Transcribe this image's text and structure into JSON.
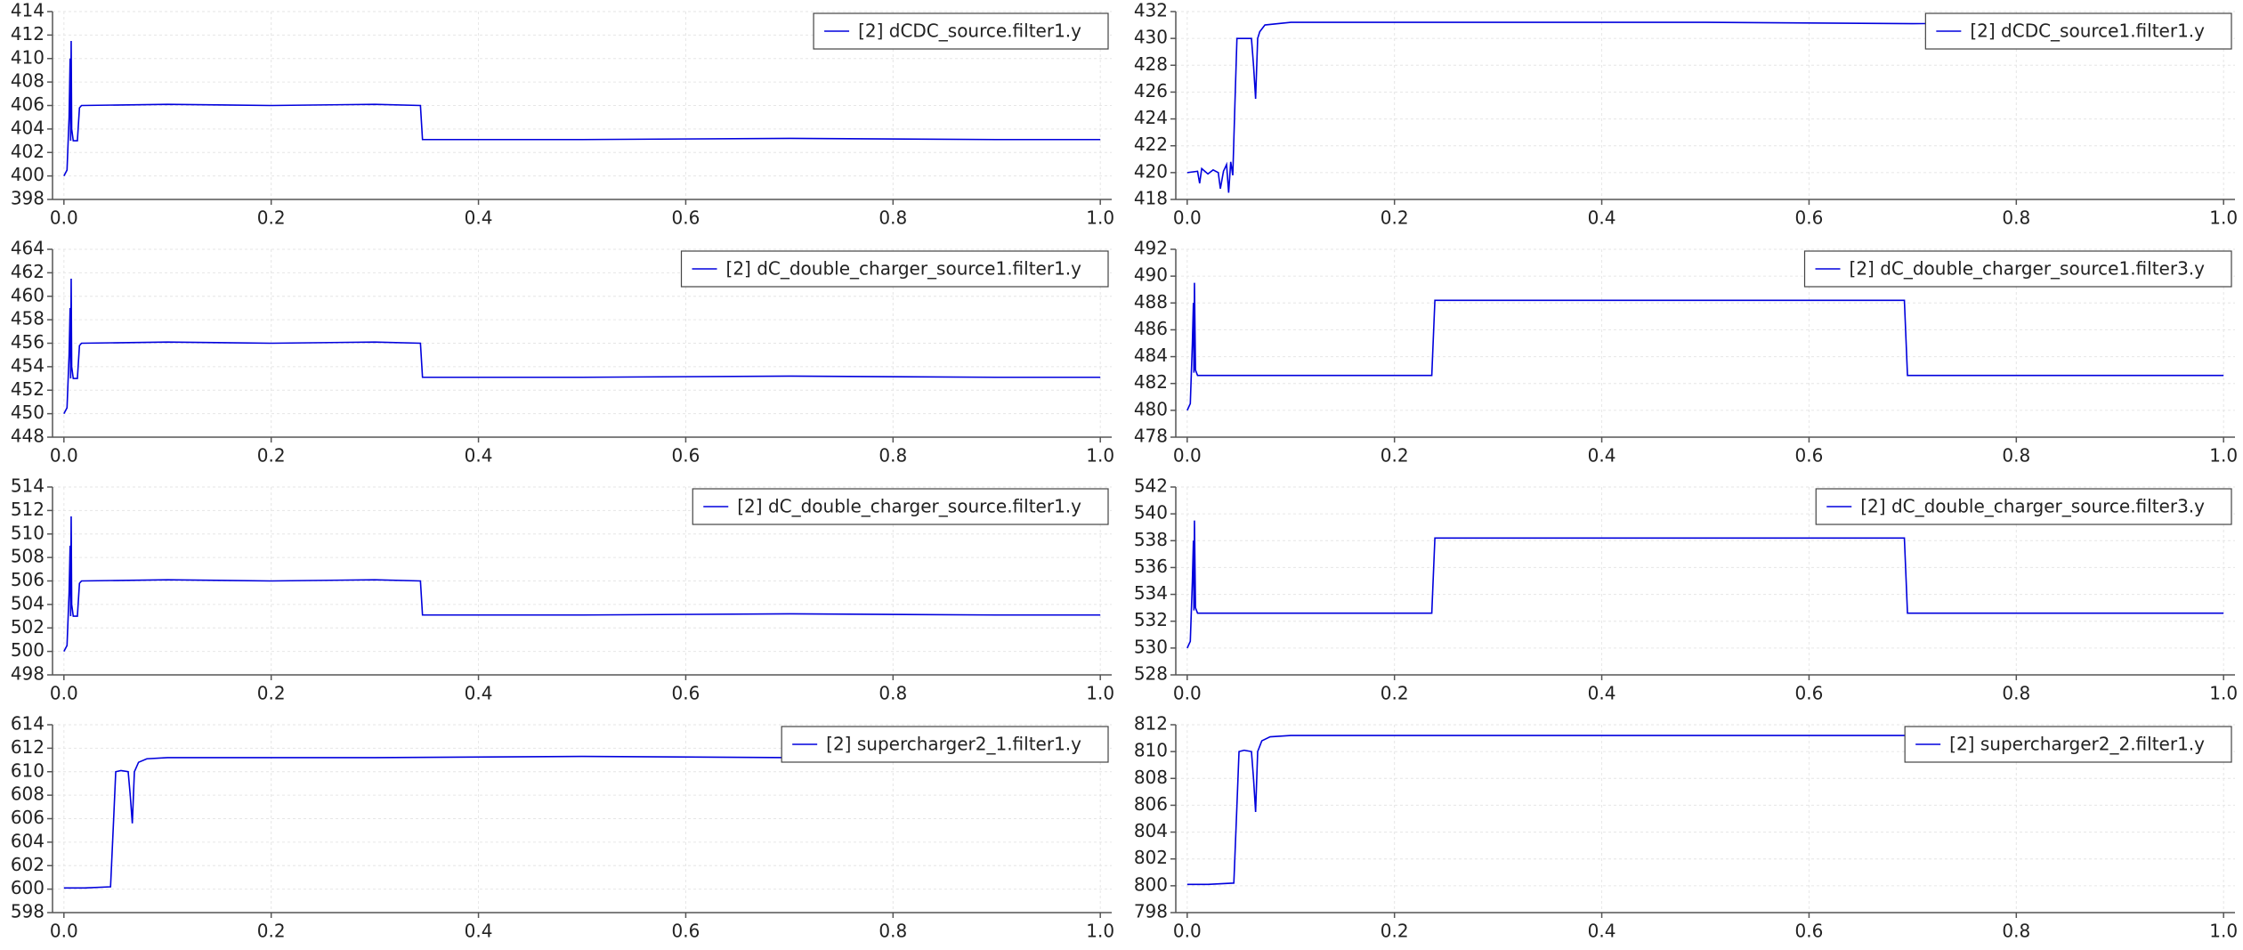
{
  "chart_data": [
    {
      "type": "line",
      "x": [
        0,
        0.003,
        0.005,
        0.006,
        0.0065,
        0.007,
        0.0075,
        0.009,
        0.013,
        0.015,
        0.017,
        0.1,
        0.2,
        0.3,
        0.344,
        0.346,
        0.5,
        0.7,
        0.9,
        1.0
      ],
      "series": [
        {
          "name": "[2] dCDC_source.filter1.y",
          "color": "#0000dd",
          "values": [
            400,
            400.5,
            405,
            410,
            403,
            411.5,
            404,
            403,
            403,
            405.8,
            406,
            406.1,
            406,
            406.1,
            406,
            403.1,
            403.1,
            403.2,
            403.1,
            403.1
          ]
        }
      ],
      "xlim": [
        -0.011,
        1.011
      ],
      "ylim": [
        398,
        414
      ],
      "xticks": [
        {
          "value": 0,
          "label": "0.0"
        },
        0.2,
        0.4,
        0.6,
        0.8,
        {
          "value": 1,
          "label": "1.0"
        }
      ],
      "yticks": [
        398,
        400,
        402,
        404,
        406,
        408,
        410,
        412,
        414
      ],
      "grid": true,
      "legend": "upper right"
    },
    {
      "type": "line",
      "x": [
        0,
        0.01,
        0.012,
        0.014,
        0.02,
        0.025,
        0.03,
        0.032,
        0.035,
        0.038,
        0.04,
        0.042,
        0.044,
        0.046,
        0.048,
        0.055,
        0.062,
        0.064,
        0.066,
        0.068,
        0.07,
        0.075,
        0.1,
        0.3,
        0.5,
        0.7,
        0.9,
        1.0
      ],
      "series": [
        {
          "name": "[2] dCDC_source1.filter1.y",
          "color": "#0000dd",
          "values": [
            420,
            420.1,
            419.2,
            420.3,
            419.9,
            420.2,
            420,
            418.8,
            420.1,
            420.6,
            418.5,
            420.8,
            419.8,
            425,
            430,
            430,
            430,
            428,
            425.5,
            430,
            430.5,
            431,
            431.2,
            431.2,
            431.2,
            431.1,
            431.2,
            431.2
          ]
        }
      ],
      "xlim": [
        -0.011,
        1.011
      ],
      "ylim": [
        418,
        432
      ],
      "xticks": [
        {
          "value": 0,
          "label": "0.0"
        },
        0.2,
        0.4,
        0.6,
        0.8,
        {
          "value": 1,
          "label": "1.0"
        }
      ],
      "yticks": [
        418,
        420,
        422,
        424,
        426,
        428,
        430,
        432
      ],
      "grid": true,
      "legend": "upper right"
    },
    {
      "type": "line",
      "x": [
        0,
        0.003,
        0.005,
        0.006,
        0.0065,
        0.007,
        0.0075,
        0.009,
        0.013,
        0.015,
        0.017,
        0.1,
        0.2,
        0.3,
        0.344,
        0.346,
        0.5,
        0.7,
        0.9,
        1.0
      ],
      "series": [
        {
          "name": "[2] dC_double_charger_source1.filter1.y",
          "color": "#0000dd",
          "values": [
            450,
            450.5,
            455,
            459,
            453,
            461.5,
            454,
            453,
            453,
            455.8,
            456,
            456.1,
            456,
            456.1,
            456,
            453.1,
            453.1,
            453.2,
            453.1,
            453.1
          ]
        }
      ],
      "xlim": [
        -0.011,
        1.011
      ],
      "ylim": [
        448,
        464
      ],
      "xticks": [
        {
          "value": 0,
          "label": "0.0"
        },
        0.2,
        0.4,
        0.6,
        0.8,
        {
          "value": 1,
          "label": "1.0"
        }
      ],
      "yticks": [
        448,
        450,
        452,
        454,
        456,
        458,
        460,
        462,
        464
      ],
      "grid": true,
      "legend": "upper right"
    },
    {
      "type": "line",
      "x": [
        0,
        0.003,
        0.005,
        0.006,
        0.0065,
        0.007,
        0.008,
        0.01,
        0.1,
        0.236,
        0.239,
        0.4,
        0.6,
        0.692,
        0.695,
        0.8,
        1.0
      ],
      "series": [
        {
          "name": "[2] dC_double_charger_source1.filter3.y",
          "color": "#0000dd",
          "values": [
            480,
            480.5,
            485,
            488,
            482.8,
            489.5,
            483,
            482.6,
            482.6,
            482.6,
            488.2,
            488.2,
            488.2,
            488.2,
            482.6,
            482.6,
            482.6
          ]
        }
      ],
      "xlim": [
        -0.011,
        1.011
      ],
      "ylim": [
        478,
        492
      ],
      "xticks": [
        {
          "value": 0,
          "label": "0.0"
        },
        0.2,
        0.4,
        0.6,
        0.8,
        {
          "value": 1,
          "label": "1.0"
        }
      ],
      "yticks": [
        478,
        480,
        482,
        484,
        486,
        488,
        490,
        492
      ],
      "grid": true,
      "legend": "upper right"
    },
    {
      "type": "line",
      "x": [
        0,
        0.003,
        0.005,
        0.006,
        0.0065,
        0.007,
        0.0075,
        0.009,
        0.013,
        0.015,
        0.017,
        0.1,
        0.2,
        0.3,
        0.344,
        0.346,
        0.5,
        0.7,
        0.9,
        1.0
      ],
      "series": [
        {
          "name": "[2] dC_double_charger_source.filter1.y",
          "color": "#0000dd",
          "values": [
            500,
            500.5,
            505,
            509,
            503,
            511.5,
            504,
            503,
            503,
            505.8,
            506,
            506.1,
            506,
            506.1,
            506,
            503.1,
            503.1,
            503.2,
            503.1,
            503.1
          ]
        }
      ],
      "xlim": [
        -0.011,
        1.011
      ],
      "ylim": [
        498,
        514
      ],
      "xticks": [
        {
          "value": 0,
          "label": "0.0"
        },
        0.2,
        0.4,
        0.6,
        0.8,
        {
          "value": 1,
          "label": "1.0"
        }
      ],
      "yticks": [
        498,
        500,
        502,
        504,
        506,
        508,
        510,
        512,
        514
      ],
      "grid": true,
      "legend": "upper right"
    },
    {
      "type": "line",
      "x": [
        0,
        0.003,
        0.005,
        0.006,
        0.0065,
        0.007,
        0.008,
        0.01,
        0.1,
        0.236,
        0.239,
        0.4,
        0.6,
        0.692,
        0.695,
        0.8,
        1.0
      ],
      "series": [
        {
          "name": "[2] dC_double_charger_source.filter3.y",
          "color": "#0000dd",
          "values": [
            530,
            530.5,
            535,
            538,
            532.8,
            539.5,
            533,
            532.6,
            532.6,
            532.6,
            538.2,
            538.2,
            538.2,
            538.2,
            532.6,
            532.6,
            532.6
          ]
        }
      ],
      "xlim": [
        -0.011,
        1.011
      ],
      "ylim": [
        528,
        542
      ],
      "xticks": [
        {
          "value": 0,
          "label": "0.0"
        },
        0.2,
        0.4,
        0.6,
        0.8,
        {
          "value": 1,
          "label": "1.0"
        }
      ],
      "yticks": [
        528,
        530,
        532,
        534,
        536,
        538,
        540,
        542
      ],
      "grid": true,
      "legend": "upper right"
    },
    {
      "type": "line",
      "x": [
        0,
        0.02,
        0.045,
        0.048,
        0.05,
        0.055,
        0.062,
        0.064,
        0.066,
        0.068,
        0.072,
        0.08,
        0.1,
        0.3,
        0.5,
        0.7,
        0.9,
        1.0
      ],
      "series": [
        {
          "name": "[2] supercharger2_1.filter1.y",
          "color": "#0000dd",
          "values": [
            600.1,
            600.1,
            600.2,
            606,
            610,
            610.1,
            610,
            608,
            605.6,
            610,
            610.8,
            611.1,
            611.2,
            611.2,
            611.3,
            611.2,
            611.2,
            611.2
          ]
        }
      ],
      "xlim": [
        -0.011,
        1.011
      ],
      "ylim": [
        598,
        614
      ],
      "xticks": [
        {
          "value": 0,
          "label": "0.0"
        },
        0.2,
        0.4,
        0.6,
        0.8,
        {
          "value": 1,
          "label": "1.0"
        }
      ],
      "yticks": [
        598,
        600,
        602,
        604,
        606,
        608,
        610,
        612,
        614
      ],
      "grid": true,
      "legend": "upper right"
    },
    {
      "type": "line",
      "x": [
        0,
        0.02,
        0.045,
        0.048,
        0.05,
        0.055,
        0.062,
        0.064,
        0.066,
        0.068,
        0.072,
        0.08,
        0.1,
        0.3,
        0.5,
        0.7,
        0.9,
        1.0
      ],
      "series": [
        {
          "name": "[2] supercharger2_2.filter1.y",
          "color": "#0000dd",
          "values": [
            800.1,
            800.1,
            800.2,
            806,
            810,
            810.1,
            810,
            808,
            805.5,
            810,
            810.8,
            811.1,
            811.2,
            811.2,
            811.2,
            811.2,
            811.2,
            811.2
          ]
        }
      ],
      "xlim": [
        -0.011,
        1.011
      ],
      "ylim": [
        798,
        812
      ],
      "xticks": [
        {
          "value": 0,
          "label": "0.0"
        },
        0.2,
        0.4,
        0.6,
        0.8,
        {
          "value": 1,
          "label": "1.0"
        }
      ],
      "yticks": [
        798,
        800,
        802,
        804,
        806,
        808,
        810,
        812
      ],
      "grid": true,
      "legend": "upper right"
    }
  ]
}
